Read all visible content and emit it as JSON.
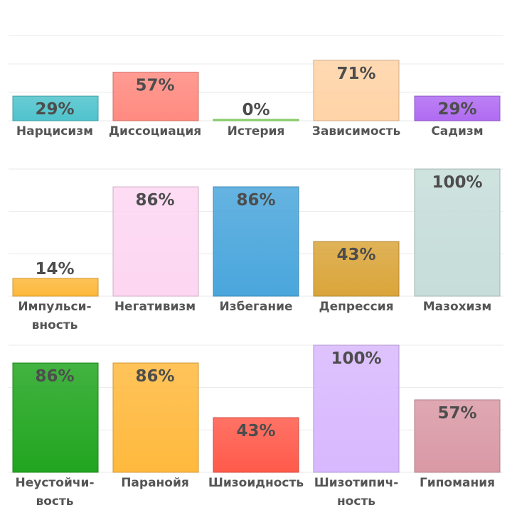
{
  "chart_data": [
    {
      "type": "bar",
      "ylim": [
        0,
        100
      ],
      "grid": true,
      "categories": [
        {
          "lines": [
            "Нарцисизм"
          ],
          "value": 29,
          "display": "29%",
          "color": "#4fc3cc"
        },
        {
          "lines": [
            "Диссоциация"
          ],
          "value": 57,
          "display": "57%",
          "color": "#ff8a80"
        },
        {
          "lines": [
            "Истерия"
          ],
          "value": 0,
          "display": "0%",
          "color": "#8fe06b"
        },
        {
          "lines": [
            "Зависимость"
          ],
          "value": 71,
          "display": "71%",
          "color": "#ffd3a6"
        },
        {
          "lines": [
            "Садизм"
          ],
          "value": 29,
          "display": "29%",
          "color": "#b06bf2"
        }
      ]
    },
    {
      "type": "bar",
      "ylim": [
        0,
        100
      ],
      "grid": true,
      "categories": [
        {
          "lines": [
            "Импульси-",
            "вность"
          ],
          "value": 14,
          "display": "14%",
          "color": "#fdb83a"
        },
        {
          "lines": [
            "Негативизм"
          ],
          "value": 86,
          "display": "86%",
          "color": "#fdd6f2"
        },
        {
          "lines": [
            "Избегание"
          ],
          "value": 86,
          "display": "86%",
          "color": "#4aa6dc"
        },
        {
          "lines": [
            "Депрессия"
          ],
          "value": 43,
          "display": "43%",
          "color": "#daa53a"
        },
        {
          "lines": [
            "Мазохизм"
          ],
          "value": 100,
          "display": "100%",
          "color": "#c6ddd9"
        }
      ]
    },
    {
      "type": "bar",
      "ylim": [
        0,
        100
      ],
      "grid": true,
      "categories": [
        {
          "lines": [
            "Неустойчи-",
            "вость"
          ],
          "value": 86,
          "display": "86%",
          "color": "#21a51f"
        },
        {
          "lines": [
            "Паранойя"
          ],
          "value": 86,
          "display": "86%",
          "color": "#ffb93d"
        },
        {
          "lines": [
            "Шизоидность"
          ],
          "value": 43,
          "display": "43%",
          "color": "#ff5a4a"
        },
        {
          "lines": [
            "Шизотипич-",
            "ность"
          ],
          "value": 100,
          "display": "100%",
          "color": "#d8b8fe"
        },
        {
          "lines": [
            "Гипомания"
          ],
          "value": 57,
          "display": "57%",
          "color": "#d999a5"
        }
      ]
    }
  ]
}
